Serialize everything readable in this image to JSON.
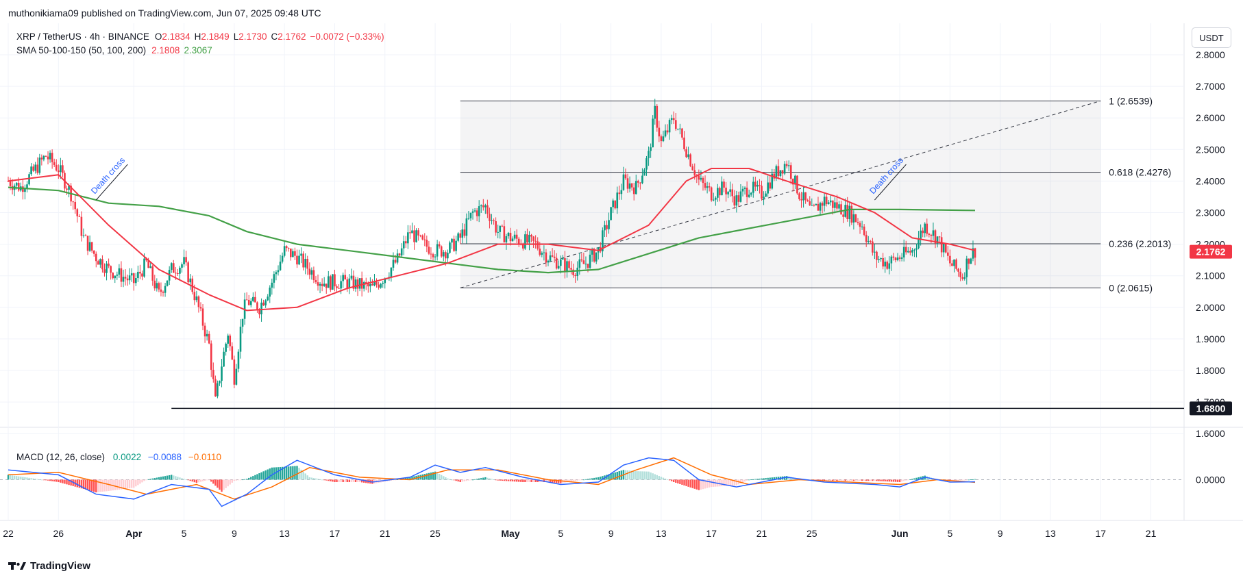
{
  "header": {
    "publisher_line": "muthonikiama09 published on TradingView.com, Jun 07, 2025 09:48 UTC"
  },
  "legend": {
    "symbol": "XRP / TetherUS · 4h · BINANCE",
    "open_label": "O",
    "open": "2.1834",
    "high_label": "H",
    "high": "2.1849",
    "low_label": "L",
    "low": "2.1730",
    "close_label": "C",
    "close": "2.1762",
    "change": "−0.0072 (−0.33%)",
    "sma_title": "SMA 50-100-150 (50, 100, 200)",
    "sma_fast_value": "2.1808",
    "sma_slow_value": "2.3067"
  },
  "macd_legend": {
    "title": "MACD (12, 26, close)",
    "histogram": "0.0022",
    "macd": "−0.0088",
    "signal": "−0.0110"
  },
  "toolbar": {
    "currency": "USDT"
  },
  "footer": {
    "brand": "TradingView"
  },
  "colors": {
    "up": "#089981",
    "down": "#f23645",
    "sma_fast": "#f23645",
    "sma_slow": "#43a047",
    "macd_line": "#2962ff",
    "signal_line": "#ff6d00",
    "annotation": "#2962ff"
  },
  "chart_data": {
    "type": "candlestick",
    "symbol": "XRP/USDT",
    "interval": "4h",
    "y_range": [
      1.56,
      2.87
    ],
    "y_ticks": [
      "2.8000",
      "2.7000",
      "2.6000",
      "2.5000",
      "2.4000",
      "2.3000",
      "2.2000",
      "2.1000",
      "2.0000",
      "1.9000",
      "1.8000",
      "1.7000",
      "1.6000"
    ],
    "x_ticks": [
      {
        "label": "22",
        "date": "2025-03-22"
      },
      {
        "label": "26",
        "date": "2025-03-26"
      },
      {
        "label": "Apr",
        "date": "2025-04-01"
      },
      {
        "label": "5",
        "date": "2025-04-05"
      },
      {
        "label": "9",
        "date": "2025-04-09"
      },
      {
        "label": "13",
        "date": "2025-04-13"
      },
      {
        "label": "17",
        "date": "2025-04-17"
      },
      {
        "label": "21",
        "date": "2025-04-21"
      },
      {
        "label": "25",
        "date": "2025-04-25"
      },
      {
        "label": "May",
        "date": "2025-05-01"
      },
      {
        "label": "5",
        "date": "2025-05-05"
      },
      {
        "label": "9",
        "date": "2025-05-09"
      },
      {
        "label": "13",
        "date": "2025-05-13"
      },
      {
        "label": "17",
        "date": "2025-05-17"
      },
      {
        "label": "21",
        "date": "2025-05-21"
      },
      {
        "label": "25",
        "date": "2025-05-25"
      },
      {
        "label": "Jun",
        "date": "2025-06-01"
      },
      {
        "label": "5",
        "date": "2025-06-05"
      },
      {
        "label": "9",
        "date": "2025-06-09"
      },
      {
        "label": "13",
        "date": "2025-06-13"
      },
      {
        "label": "17",
        "date": "2025-06-17"
      },
      {
        "label": "21",
        "date": "2025-06-21"
      }
    ],
    "price_path": [
      [
        "2025-03-22",
        2.4
      ],
      [
        "2025-03-23",
        2.38
      ],
      [
        "2025-03-25",
        2.48
      ],
      [
        "2025-03-26",
        2.44
      ],
      [
        "2025-03-27",
        2.36
      ],
      [
        "2025-03-28",
        2.22
      ],
      [
        "2025-03-29",
        2.16
      ],
      [
        "2025-03-30",
        2.12
      ],
      [
        "2025-03-31",
        2.1
      ],
      [
        "2025-04-01",
        2.08
      ],
      [
        "2025-04-02",
        2.14
      ],
      [
        "2025-04-03",
        2.04
      ],
      [
        "2025-04-04",
        2.12
      ],
      [
        "2025-04-05",
        2.14
      ],
      [
        "2025-04-06",
        2.02
      ],
      [
        "2025-04-07",
        1.88
      ],
      [
        "2025-04-07T12",
        1.7
      ],
      [
        "2025-04-08",
        1.82
      ],
      [
        "2025-04-08T12",
        1.92
      ],
      [
        "2025-04-09",
        1.78
      ],
      [
        "2025-04-09T16",
        1.98
      ],
      [
        "2025-04-10",
        2.02
      ],
      [
        "2025-04-11",
        2.0
      ],
      [
        "2025-04-12",
        2.08
      ],
      [
        "2025-04-13",
        2.18
      ],
      [
        "2025-04-14",
        2.16
      ],
      [
        "2025-04-15",
        2.12
      ],
      [
        "2025-04-16",
        2.08
      ],
      [
        "2025-04-17",
        2.08
      ],
      [
        "2025-04-18",
        2.08
      ],
      [
        "2025-04-19",
        2.07
      ],
      [
        "2025-04-20",
        2.06
      ],
      [
        "2025-04-21",
        2.1
      ],
      [
        "2025-04-22",
        2.15
      ],
      [
        "2025-04-23",
        2.24
      ],
      [
        "2025-04-24",
        2.2
      ],
      [
        "2025-04-25",
        2.18
      ],
      [
        "2025-04-26",
        2.18
      ],
      [
        "2025-04-27",
        2.22
      ],
      [
        "2025-04-28",
        2.3
      ],
      [
        "2025-04-29",
        2.32
      ],
      [
        "2025-04-30",
        2.24
      ],
      [
        "2025-05-01",
        2.22
      ],
      [
        "2025-05-02",
        2.21
      ],
      [
        "2025-05-03",
        2.2
      ],
      [
        "2025-05-04",
        2.16
      ],
      [
        "2025-05-05",
        2.14
      ],
      [
        "2025-05-06",
        2.12
      ],
      [
        "2025-05-07",
        2.14
      ],
      [
        "2025-05-08",
        2.18
      ],
      [
        "2025-05-09",
        2.3
      ],
      [
        "2025-05-10",
        2.4
      ],
      [
        "2025-05-11",
        2.38
      ],
      [
        "2025-05-12",
        2.48
      ],
      [
        "2025-05-12T12",
        2.62
      ],
      [
        "2025-05-13",
        2.52
      ],
      [
        "2025-05-14",
        2.6
      ],
      [
        "2025-05-15",
        2.5
      ],
      [
        "2025-05-16",
        2.4
      ],
      [
        "2025-05-17",
        2.36
      ],
      [
        "2025-05-18",
        2.38
      ],
      [
        "2025-05-19",
        2.34
      ],
      [
        "2025-05-20",
        2.38
      ],
      [
        "2025-05-21",
        2.36
      ],
      [
        "2025-05-22",
        2.42
      ],
      [
        "2025-05-23",
        2.46
      ],
      [
        "2025-05-24",
        2.36
      ],
      [
        "2025-05-25",
        2.3
      ],
      [
        "2025-05-26",
        2.34
      ],
      [
        "2025-05-27",
        2.32
      ],
      [
        "2025-05-28",
        2.3
      ],
      [
        "2025-05-29",
        2.26
      ],
      [
        "2025-05-30",
        2.16
      ],
      [
        "2025-05-31",
        2.14
      ],
      [
        "2025-06-01",
        2.16
      ],
      [
        "2025-06-02",
        2.18
      ],
      [
        "2025-06-03",
        2.26
      ],
      [
        "2025-06-04",
        2.22
      ],
      [
        "2025-06-05",
        2.14
      ],
      [
        "2025-06-06",
        2.1
      ],
      [
        "2025-06-06T12",
        2.16
      ],
      [
        "2025-06-07",
        2.18
      ]
    ],
    "sma_fast": {
      "name": "SMA 50",
      "points": [
        [
          "2025-03-22",
          2.4
        ],
        [
          "2025-03-26",
          2.42
        ],
        [
          "2025-03-30",
          2.26
        ],
        [
          "2025-04-03",
          2.12
        ],
        [
          "2025-04-07",
          2.04
        ],
        [
          "2025-04-10",
          1.99
        ],
        [
          "2025-04-14",
          2.0
        ],
        [
          "2025-04-18",
          2.06
        ],
        [
          "2025-04-22",
          2.1
        ],
        [
          "2025-04-26",
          2.14
        ],
        [
          "2025-04-30",
          2.2
        ],
        [
          "2025-05-04",
          2.2
        ],
        [
          "2025-05-08",
          2.18
        ],
        [
          "2025-05-12",
          2.26
        ],
        [
          "2025-05-15",
          2.4
        ],
        [
          "2025-05-17",
          2.44
        ],
        [
          "2025-05-20",
          2.44
        ],
        [
          "2025-05-23",
          2.4
        ],
        [
          "2025-05-27",
          2.35
        ],
        [
          "2025-05-30",
          2.3
        ],
        [
          "2025-06-02",
          2.22
        ],
        [
          "2025-06-05",
          2.2
        ],
        [
          "2025-06-07",
          2.18
        ]
      ]
    },
    "sma_slow": {
      "name": "SMA 200",
      "points": [
        [
          "2025-03-22",
          2.38
        ],
        [
          "2025-03-26",
          2.37
        ],
        [
          "2025-03-30",
          2.33
        ],
        [
          "2025-04-03",
          2.32
        ],
        [
          "2025-04-07",
          2.29
        ],
        [
          "2025-04-10",
          2.24
        ],
        [
          "2025-04-14",
          2.2
        ],
        [
          "2025-04-18",
          2.18
        ],
        [
          "2025-04-22",
          2.16
        ],
        [
          "2025-04-26",
          2.14
        ],
        [
          "2025-04-30",
          2.12
        ],
        [
          "2025-05-04",
          2.11
        ],
        [
          "2025-05-08",
          2.12
        ],
        [
          "2025-05-12",
          2.17
        ],
        [
          "2025-05-16",
          2.22
        ],
        [
          "2025-05-20",
          2.25
        ],
        [
          "2025-05-24",
          2.28
        ],
        [
          "2025-05-28",
          2.31
        ],
        [
          "2025-06-01",
          2.31
        ],
        [
          "2025-06-07",
          2.307
        ]
      ]
    },
    "fib_levels": [
      {
        "label": "1 (2.6539)",
        "price": 2.6539
      },
      {
        "label": "0.618 (2.4276)",
        "price": 2.4276
      },
      {
        "label": "0.236 (2.2013)",
        "price": 2.2013
      },
      {
        "label": "0 (2.0615)",
        "price": 2.0615
      }
    ],
    "fib_start_date": "2025-04-27",
    "fib_end_date": "2025-06-17",
    "support_line": {
      "price": 1.68,
      "label": "1.6800",
      "start_date": "2025-04-04"
    },
    "last_price_label": "2.1762",
    "annotations": [
      {
        "text": "Death cross",
        "date": "2025-03-29",
        "price": 2.34
      },
      {
        "text": "Death cross",
        "date": "2025-05-30",
        "price": 2.34
      }
    ],
    "macd": {
      "zero_label": "0.0000",
      "y_range": [
        -0.14,
        0.12
      ],
      "macd_points": [
        [
          "2025-03-22",
          0.04
        ],
        [
          "2025-03-26",
          0.02
        ],
        [
          "2025-03-29",
          -0.06
        ],
        [
          "2025-04-01",
          -0.08
        ],
        [
          "2025-04-04",
          -0.02
        ],
        [
          "2025-04-07",
          -0.04
        ],
        [
          "2025-04-08",
          -0.11
        ],
        [
          "2025-04-10",
          -0.06
        ],
        [
          "2025-04-12",
          0.02
        ],
        [
          "2025-04-14",
          0.08
        ],
        [
          "2025-04-17",
          0.02
        ],
        [
          "2025-04-20",
          -0.01
        ],
        [
          "2025-04-23",
          0.01
        ],
        [
          "2025-04-25",
          0.06
        ],
        [
          "2025-04-27",
          0.03
        ],
        [
          "2025-04-29",
          0.05
        ],
        [
          "2025-05-02",
          0.01
        ],
        [
          "2025-05-05",
          -0.02
        ],
        [
          "2025-05-08",
          -0.01
        ],
        [
          "2025-05-10",
          0.06
        ],
        [
          "2025-05-12",
          0.09
        ],
        [
          "2025-05-14",
          0.08
        ],
        [
          "2025-05-16",
          0.0
        ],
        [
          "2025-05-19",
          -0.03
        ],
        [
          "2025-05-21",
          -0.01
        ],
        [
          "2025-05-23",
          0.01
        ],
        [
          "2025-05-26",
          -0.01
        ],
        [
          "2025-05-30",
          -0.02
        ],
        [
          "2025-06-01",
          -0.03
        ],
        [
          "2025-06-03",
          0.01
        ],
        [
          "2025-06-05",
          -0.01
        ],
        [
          "2025-06-07",
          -0.0088
        ]
      ],
      "signal_points": [
        [
          "2025-03-22",
          0.02
        ],
        [
          "2025-03-26",
          0.03
        ],
        [
          "2025-03-30",
          -0.02
        ],
        [
          "2025-04-02",
          -0.06
        ],
        [
          "2025-04-06",
          -0.02
        ],
        [
          "2025-04-09",
          -0.08
        ],
        [
          "2025-04-12",
          -0.03
        ],
        [
          "2025-04-15",
          0.05
        ],
        [
          "2025-04-19",
          0.01
        ],
        [
          "2025-04-23",
          0.0
        ],
        [
          "2025-04-26",
          0.04
        ],
        [
          "2025-04-30",
          0.04
        ],
        [
          "2025-05-04",
          0.0
        ],
        [
          "2025-05-08",
          -0.02
        ],
        [
          "2025-05-11",
          0.04
        ],
        [
          "2025-05-14",
          0.09
        ],
        [
          "2025-05-17",
          0.02
        ],
        [
          "2025-05-20",
          -0.02
        ],
        [
          "2025-05-24",
          0.0
        ],
        [
          "2025-05-28",
          -0.01
        ],
        [
          "2025-06-01",
          -0.02
        ],
        [
          "2025-06-04",
          0.0
        ],
        [
          "2025-06-07",
          -0.011
        ]
      ]
    }
  }
}
